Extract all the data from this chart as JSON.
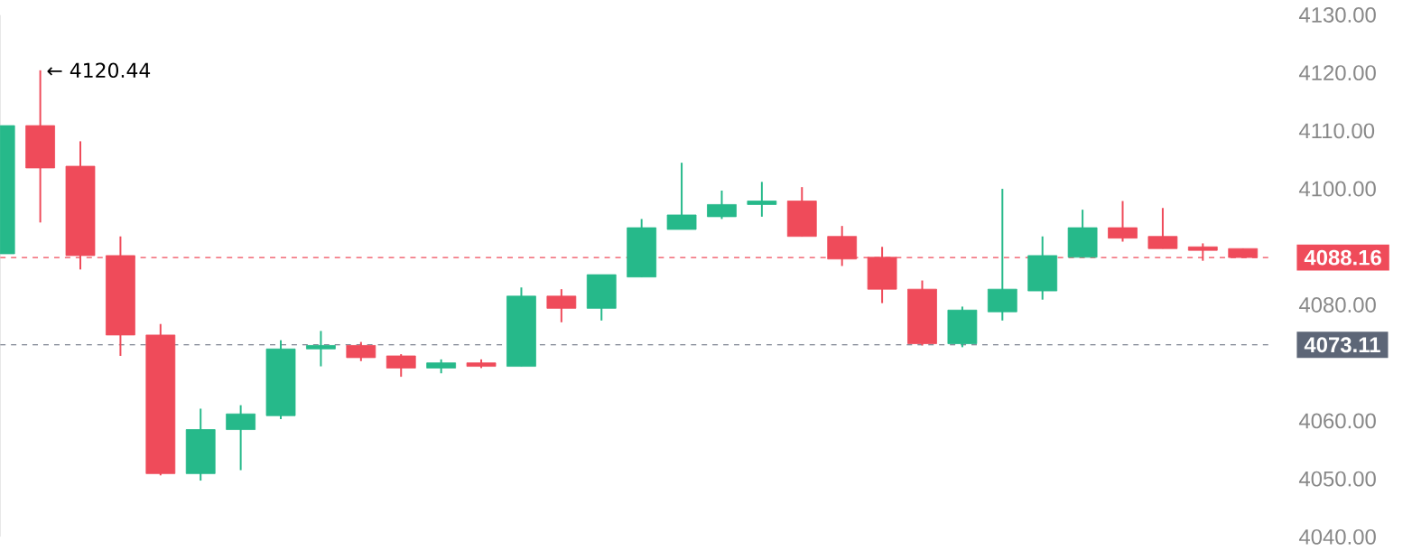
{
  "chart_data": {
    "type": "candlestick",
    "categories": [
      null,
      null,
      null,
      null,
      null,
      null,
      null,
      null,
      null,
      null,
      null,
      null,
      null,
      null,
      null,
      null,
      null,
      null,
      null,
      null,
      null,
      null,
      null,
      null,
      null,
      null,
      null,
      null,
      null,
      null,
      null,
      null
    ],
    "ohlc": [
      [
        4088.8,
        4110.9,
        4088.8,
        4110.9
      ],
      [
        4110.9,
        4120.44,
        4094.2,
        4103.6
      ],
      [
        4103.9,
        4108.2,
        4086.1,
        4088.5
      ],
      [
        4088.5,
        4091.8,
        4071.2,
        4074.8
      ],
      [
        4074.8,
        4076.7,
        4050.6,
        4050.9
      ],
      [
        4050.9,
        4062.1,
        4049.7,
        4058.5
      ],
      [
        4058.5,
        4062.7,
        4051.5,
        4061.2
      ],
      [
        4060.9,
        4073.9,
        4060.3,
        4072.4
      ],
      [
        4072.4,
        4075.5,
        4069.4,
        4073.0
      ],
      [
        4073.0,
        4073.6,
        4070.3,
        4070.9
      ],
      [
        4071.2,
        4071.5,
        4067.6,
        4069.1
      ],
      [
        4069.1,
        4070.6,
        4068.2,
        4070.0
      ],
      [
        4070.0,
        4070.6,
        4069.1,
        4069.4
      ],
      [
        4069.4,
        4083.0,
        4069.4,
        4081.5
      ],
      [
        4081.5,
        4082.7,
        4077.0,
        4079.4
      ],
      [
        4079.4,
        4085.2,
        4077.3,
        4085.2
      ],
      [
        4084.8,
        4094.8,
        4084.8,
        4093.3
      ],
      [
        4093.0,
        4104.5,
        4093.0,
        4095.5
      ],
      [
        4095.2,
        4099.7,
        4094.8,
        4097.3
      ],
      [
        4097.3,
        4101.2,
        4095.2,
        4097.9
      ],
      [
        4097.9,
        4100.3,
        4091.8,
        4091.8
      ],
      [
        4091.8,
        4093.6,
        4086.7,
        4087.9
      ],
      [
        4088.2,
        4090.0,
        4080.3,
        4082.7
      ],
      [
        4082.7,
        4084.2,
        4073.0,
        4073.3
      ],
      [
        4073.3,
        4079.7,
        4072.7,
        4079.1
      ],
      [
        4078.8,
        4100.0,
        4077.3,
        4082.7
      ],
      [
        4082.4,
        4091.8,
        4080.9,
        4088.5
      ],
      [
        4088.2,
        4096.4,
        4088.2,
        4093.3
      ],
      [
        4093.3,
        4097.9,
        4090.9,
        4091.5
      ],
      [
        4091.8,
        4096.7,
        4089.7,
        4089.7
      ],
      [
        4090.0,
        4090.6,
        4087.6,
        4089.4
      ],
      [
        4089.7,
        4089.7,
        4088.16,
        4088.16
      ]
    ],
    "colors": [
      "#26b98a",
      "#ef4b5a",
      "#ef4b5a",
      "#ef4b5a",
      "#ef4b5a",
      "#26b98a",
      "#26b98a",
      "#26b98a",
      "#26b98a",
      "#ef4b5a",
      "#ef4b5a",
      "#26b98a",
      "#ef4b5a",
      "#26b98a",
      "#ef4b5a",
      "#26b98a",
      "#26b98a",
      "#26b98a",
      "#26b98a",
      "#26b98a",
      "#ef4b5a",
      "#ef4b5a",
      "#ef4b5a",
      "#ef4b5a",
      "#26b98a",
      "#26b98a",
      "#26b98a",
      "#26b98a",
      "#ef4b5a",
      "#ef4b5a",
      "#ef4b5a",
      "#ef4b5a"
    ],
    "ylim": [
      4040,
      4130
    ],
    "yticks": [
      {
        "value": 4040,
        "label": "4040.00"
      },
      {
        "value": 4050,
        "label": "4050.00"
      },
      {
        "value": 4060,
        "label": "4060.00"
      },
      {
        "value": 4080,
        "label": "4080.00"
      },
      {
        "value": 4100,
        "label": "4100.00"
      },
      {
        "value": 4110,
        "label": "4110.00"
      },
      {
        "value": 4120,
        "label": "4120.00"
      },
      {
        "value": 4130,
        "label": "4130.00"
      }
    ],
    "tick_labels": "y",
    "ref_lines": [
      {
        "axis": "y",
        "value": 4088.16,
        "label": "4088.16",
        "color": "#ef4b5a",
        "line_style": "dashed"
      },
      {
        "axis": "y",
        "value": 4073.11,
        "label": "4073.11",
        "color": "#5d6677",
        "line_style": "dashed"
      }
    ],
    "annotations": [
      "← 4120.44"
    ]
  }
}
